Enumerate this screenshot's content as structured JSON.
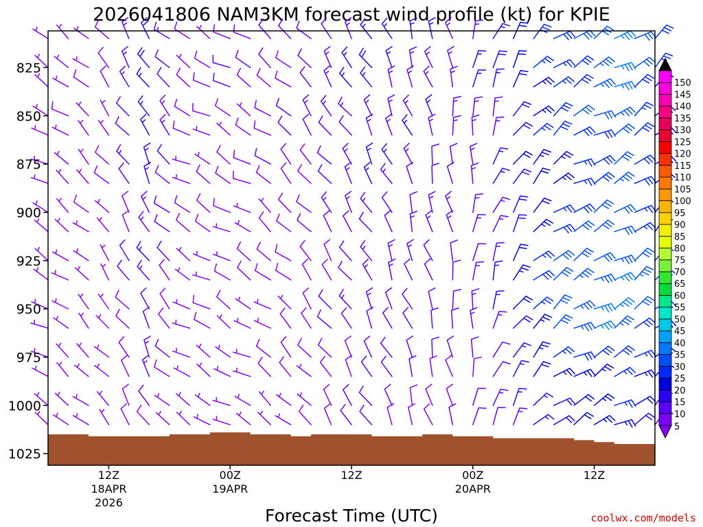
{
  "chart_data": {
    "type": "wind-barb-profile",
    "title": "2026041806 NAM3KM forecast wind profile (kt) for KPIE",
    "xlabel": "Forecast Time (UTC)",
    "ylabel": "",
    "credit": "coolwx.com/models",
    "y_axis": {
      "ticks": [
        825,
        850,
        875,
        900,
        925,
        950,
        975,
        1000,
        1025
      ],
      "range": [
        806,
        1031
      ]
    },
    "x_axis": {
      "start_hour": 0,
      "end_hour": 60,
      "ticks": [
        {
          "hour": 6,
          "label": "12Z",
          "date": "18APR",
          "year": "2026"
        },
        {
          "hour": 18,
          "label": "00Z",
          "date": "19APR",
          "year": ""
        },
        {
          "hour": 30,
          "label": "12Z",
          "date": "",
          "year": ""
        },
        {
          "hour": 42,
          "label": "00Z",
          "date": "20APR",
          "year": ""
        },
        {
          "hour": 54,
          "label": "12Z",
          "date": "",
          "year": ""
        }
      ]
    },
    "pressure_levels": [
      810,
      825,
      835,
      850,
      860,
      875,
      885,
      900,
      910,
      925,
      935,
      950,
      960,
      975,
      985,
      1000,
      1010
    ],
    "barb_hours": [
      0,
      2,
      4,
      6,
      8,
      10,
      12,
      14,
      16,
      18,
      20,
      22,
      24,
      26,
      28,
      30,
      32,
      34,
      36,
      38,
      40,
      42,
      44,
      46,
      48,
      50,
      52,
      54,
      56,
      58,
      60
    ],
    "wind_field": {
      "units": "kt",
      "columns": [
        {
          "hour": 0,
          "speed": 5,
          "direction": 300
        },
        {
          "hour": 6,
          "speed": 7,
          "direction": 320
        },
        {
          "hour": 10,
          "speed": 15,
          "direction": 330
        },
        {
          "hour": 14,
          "speed": 7,
          "direction": 300
        },
        {
          "hour": 20,
          "speed": 8,
          "direction": 300
        },
        {
          "hour": 26,
          "speed": 10,
          "direction": 320
        },
        {
          "hour": 32,
          "speed": 14,
          "direction": 330
        },
        {
          "hour": 40,
          "speed": 12,
          "direction": 350
        },
        {
          "hour": 44,
          "speed": 14,
          "direction": 20
        },
        {
          "hour": 48,
          "speed": 22,
          "direction": 45
        },
        {
          "hour": 52,
          "speed": 26,
          "direction": 60
        },
        {
          "hour": 56,
          "speed": 30,
          "direction": 60
        },
        {
          "hour": 60,
          "speed": 22,
          "direction": 50
        }
      ],
      "low_level_max": {
        "hour": 54,
        "pressure": 945,
        "speed": 36
      }
    },
    "surface_pressure": [
      {
        "hour": 0,
        "value": 1015
      },
      {
        "hour": 4,
        "value": 1016
      },
      {
        "hour": 10,
        "value": 1016
      },
      {
        "hour": 12,
        "value": 1015
      },
      {
        "hour": 16,
        "value": 1014
      },
      {
        "hour": 20,
        "value": 1015
      },
      {
        "hour": 24,
        "value": 1016
      },
      {
        "hour": 26,
        "value": 1015
      },
      {
        "hour": 30,
        "value": 1015
      },
      {
        "hour": 32,
        "value": 1016
      },
      {
        "hour": 36,
        "value": 1016
      },
      {
        "hour": 37,
        "value": 1015
      },
      {
        "hour": 40,
        "value": 1016
      },
      {
        "hour": 44,
        "value": 1017
      },
      {
        "hour": 48,
        "value": 1017
      },
      {
        "hour": 50,
        "value": 1017
      },
      {
        "hour": 52,
        "value": 1018
      },
      {
        "hour": 54,
        "value": 1019
      },
      {
        "hour": 56,
        "value": 1020
      },
      {
        "hour": 58,
        "value": 1020
      },
      {
        "hour": 60,
        "value": 1019
      }
    ],
    "colorbar": {
      "levels": [
        5,
        10,
        15,
        20,
        25,
        30,
        35,
        40,
        45,
        50,
        55,
        60,
        65,
        70,
        75,
        80,
        85,
        90,
        95,
        100,
        105,
        110,
        115,
        120,
        125,
        130,
        135,
        140,
        145,
        150
      ],
      "colors": [
        "#8000ff",
        "#5a00ff",
        "#2a00ff",
        "#0000e0",
        "#0028ff",
        "#0050ff",
        "#0078ff",
        "#00a0ff",
        "#00c8e6",
        "#00e6c8",
        "#00e68c",
        "#00dc3c",
        "#32e632",
        "#78f03c",
        "#b4fa32",
        "#e6ff00",
        "#f0f000",
        "#ffd200",
        "#ffb400",
        "#ff9600",
        "#ff7800",
        "#ff5a00",
        "#ff3200",
        "#ff0000",
        "#f00032",
        "#e6005a",
        "#ff0080",
        "#ff00b4",
        "#ff00dc",
        "#ff00ff"
      ],
      "min_arrow_color": "#8000ff",
      "max_arrow_color": "#000000"
    },
    "terrain_color": "#a0522d"
  }
}
